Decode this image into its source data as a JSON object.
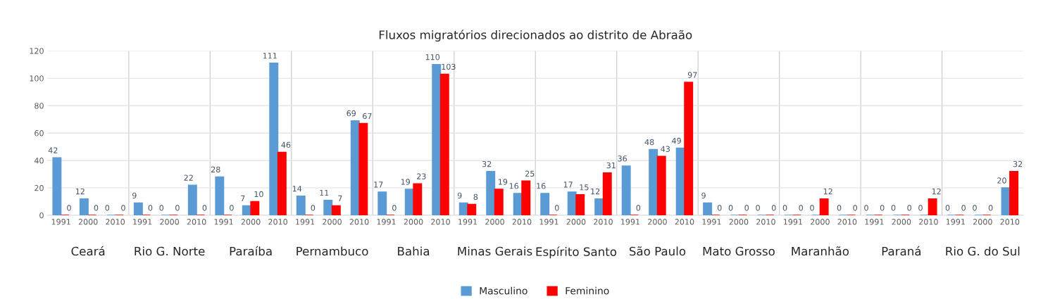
{
  "chart_data": {
    "type": "bar",
    "title": "Fluxos migratórios direcionados ao distrito de Abraão",
    "categories": [
      "1991",
      "2000",
      "2010",
      "1991",
      "2000",
      "2010",
      "1991",
      "2000",
      "2010",
      "1991",
      "2000",
      "2010",
      "1991",
      "2000",
      "2010",
      "1991",
      "2000",
      "2010",
      "1991",
      "2000",
      "2010",
      "1991",
      "2000",
      "2010",
      "1991",
      "2000",
      "2010",
      "1991",
      "2000",
      "2010",
      "1991",
      "2000",
      "2010",
      "1991",
      "2000",
      "2010"
    ],
    "series": [
      {
        "name": "Masculino",
        "color": "#5b9bd5",
        "values": [
          42,
          12,
          0,
          9,
          0,
          22,
          28,
          7,
          111,
          14,
          11,
          69,
          17,
          19,
          110,
          9,
          32,
          16,
          16,
          17,
          12,
          36,
          48,
          49,
          9,
          0,
          0,
          0,
          0,
          0,
          0,
          0,
          0,
          0,
          0,
          20
        ]
      },
      {
        "name": "Feminino",
        "color": "#ff0000",
        "values": [
          0,
          0,
          0,
          0,
          0,
          0,
          0,
          10,
          46,
          0,
          7,
          67,
          0,
          23,
          103,
          8,
          19,
          25,
          0,
          15,
          31,
          0,
          43,
          97,
          0,
          0,
          0,
          0,
          12,
          0,
          0,
          0,
          12,
          0,
          0,
          32
        ]
      }
    ],
    "annotations": [
      "Ceará",
      "Rio G. Norte",
      "Paraíba",
      "Pernambuco",
      "Bahia",
      "Minas Gerais",
      "Espírito Santo",
      "São Paulo",
      "Mato Grosso",
      "Maranhão",
      "Paraná",
      "Rio G. do Sul"
    ],
    "ylim": [
      0,
      120
    ],
    "yticks": [
      0,
      20,
      40,
      60,
      80,
      100,
      120
    ],
    "grid": "y",
    "legend": "bottom",
    "data_labels": true
  }
}
